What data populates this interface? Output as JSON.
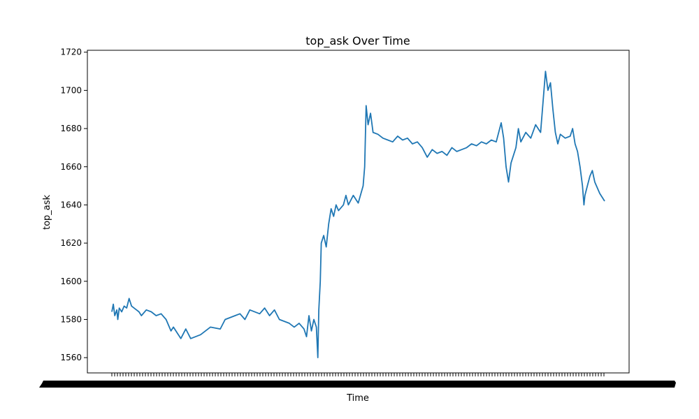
{
  "chart_data": {
    "type": "line",
    "title": "top_ask Over Time",
    "xlabel": "Time",
    "ylabel": "top_ask",
    "ylim": [
      1552,
      1721
    ],
    "y_ticks": [
      1560,
      1580,
      1600,
      1620,
      1640,
      1660,
      1680,
      1700,
      1720
    ],
    "x_tick_labels_legible": false,
    "grid": false,
    "legend": "none",
    "line_color": "#1f77b4",
    "series": [
      {
        "points": [
          [
            0.0,
            1584
          ],
          [
            0.003,
            1588
          ],
          [
            0.006,
            1582
          ],
          [
            0.01,
            1585
          ],
          [
            0.012,
            1580
          ],
          [
            0.015,
            1586
          ],
          [
            0.02,
            1584
          ],
          [
            0.025,
            1587
          ],
          [
            0.03,
            1586
          ],
          [
            0.035,
            1591
          ],
          [
            0.04,
            1587
          ],
          [
            0.05,
            1585
          ],
          [
            0.055,
            1584
          ],
          [
            0.06,
            1582
          ],
          [
            0.07,
            1585
          ],
          [
            0.08,
            1584
          ],
          [
            0.09,
            1582
          ],
          [
            0.1,
            1583
          ],
          [
            0.11,
            1580
          ],
          [
            0.12,
            1574
          ],
          [
            0.125,
            1576
          ],
          [
            0.14,
            1570
          ],
          [
            0.15,
            1575
          ],
          [
            0.16,
            1570
          ],
          [
            0.18,
            1572
          ],
          [
            0.2,
            1576
          ],
          [
            0.22,
            1575
          ],
          [
            0.23,
            1580
          ],
          [
            0.25,
            1582
          ],
          [
            0.26,
            1583
          ],
          [
            0.27,
            1580
          ],
          [
            0.28,
            1585
          ],
          [
            0.3,
            1583
          ],
          [
            0.31,
            1586
          ],
          [
            0.32,
            1582
          ],
          [
            0.33,
            1585
          ],
          [
            0.34,
            1580
          ],
          [
            0.36,
            1578
          ],
          [
            0.37,
            1576
          ],
          [
            0.38,
            1578
          ],
          [
            0.39,
            1575
          ],
          [
            0.395,
            1571
          ],
          [
            0.4,
            1582
          ],
          [
            0.405,
            1574
          ],
          [
            0.41,
            1580
          ],
          [
            0.415,
            1576
          ],
          [
            0.418,
            1560
          ],
          [
            0.42,
            1585
          ],
          [
            0.423,
            1600
          ],
          [
            0.425,
            1620
          ],
          [
            0.43,
            1624
          ],
          [
            0.435,
            1618
          ],
          [
            0.44,
            1630
          ],
          [
            0.445,
            1638
          ],
          [
            0.45,
            1634
          ],
          [
            0.455,
            1640
          ],
          [
            0.46,
            1637
          ],
          [
            0.47,
            1640
          ],
          [
            0.475,
            1645
          ],
          [
            0.48,
            1640
          ],
          [
            0.49,
            1645
          ],
          [
            0.5,
            1641
          ],
          [
            0.51,
            1650
          ],
          [
            0.513,
            1660
          ],
          [
            0.516,
            1692
          ],
          [
            0.52,
            1682
          ],
          [
            0.525,
            1688
          ],
          [
            0.53,
            1678
          ],
          [
            0.54,
            1677
          ],
          [
            0.55,
            1675
          ],
          [
            0.56,
            1674
          ],
          [
            0.57,
            1673
          ],
          [
            0.58,
            1676
          ],
          [
            0.59,
            1674
          ],
          [
            0.6,
            1675
          ],
          [
            0.61,
            1672
          ],
          [
            0.62,
            1673
          ],
          [
            0.63,
            1670
          ],
          [
            0.64,
            1665
          ],
          [
            0.65,
            1669
          ],
          [
            0.66,
            1667
          ],
          [
            0.67,
            1668
          ],
          [
            0.68,
            1666
          ],
          [
            0.69,
            1670
          ],
          [
            0.7,
            1668
          ],
          [
            0.71,
            1669
          ],
          [
            0.72,
            1670
          ],
          [
            0.73,
            1672
          ],
          [
            0.74,
            1671
          ],
          [
            0.75,
            1673
          ],
          [
            0.76,
            1672
          ],
          [
            0.77,
            1674
          ],
          [
            0.78,
            1673
          ],
          [
            0.79,
            1683
          ],
          [
            0.795,
            1675
          ],
          [
            0.8,
            1660
          ],
          [
            0.805,
            1652
          ],
          [
            0.81,
            1662
          ],
          [
            0.82,
            1670
          ],
          [
            0.825,
            1680
          ],
          [
            0.83,
            1673
          ],
          [
            0.84,
            1678
          ],
          [
            0.85,
            1675
          ],
          [
            0.86,
            1682
          ],
          [
            0.87,
            1678
          ],
          [
            0.88,
            1710
          ],
          [
            0.885,
            1700
          ],
          [
            0.89,
            1704
          ],
          [
            0.895,
            1690
          ],
          [
            0.9,
            1678
          ],
          [
            0.905,
            1672
          ],
          [
            0.91,
            1677
          ],
          [
            0.92,
            1675
          ],
          [
            0.93,
            1676
          ],
          [
            0.935,
            1680
          ],
          [
            0.94,
            1672
          ],
          [
            0.945,
            1668
          ],
          [
            0.95,
            1660
          ],
          [
            0.955,
            1650
          ],
          [
            0.958,
            1640
          ],
          [
            0.96,
            1645
          ],
          [
            0.965,
            1650
          ],
          [
            0.97,
            1655
          ],
          [
            0.975,
            1658
          ],
          [
            0.98,
            1652
          ],
          [
            0.99,
            1646
          ],
          [
            0.995,
            1644
          ],
          [
            1.0,
            1642
          ]
        ]
      }
    ]
  }
}
